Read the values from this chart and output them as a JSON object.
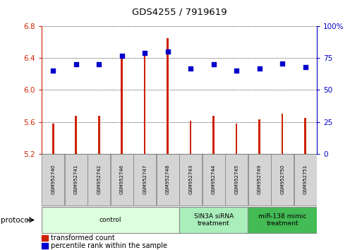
{
  "title": "GDS4255 / 7919619",
  "samples": [
    "GSM952740",
    "GSM952741",
    "GSM952742",
    "GSM952746",
    "GSM952747",
    "GSM952748",
    "GSM952743",
    "GSM952744",
    "GSM952745",
    "GSM952749",
    "GSM952750",
    "GSM952751"
  ],
  "bar_values": [
    5.58,
    5.68,
    5.68,
    6.4,
    6.43,
    6.65,
    5.61,
    5.68,
    5.58,
    5.63,
    5.7,
    5.65
  ],
  "percentile_values": [
    65,
    70,
    70,
    77,
    79,
    80,
    67,
    70,
    65,
    67,
    71,
    68
  ],
  "bar_bottom": 5.2,
  "ylim_left": [
    5.2,
    6.8
  ],
  "ylim_right": [
    0,
    100
  ],
  "yticks_left": [
    5.2,
    5.6,
    6.0,
    6.4,
    6.8
  ],
  "yticks_right": [
    0,
    25,
    50,
    75,
    100
  ],
  "ytick_labels_right": [
    "0",
    "25",
    "50",
    "75",
    "100%"
  ],
  "bar_color": "#cc2200",
  "scatter_color": "#0000cc",
  "groups": [
    {
      "label": "control",
      "start": 0,
      "end": 6,
      "color": "#ddffdd"
    },
    {
      "label": "SIN3A siRNA\ntreatment",
      "start": 6,
      "end": 9,
      "color": "#aaeebb"
    },
    {
      "label": "miR-138 mimic\ntreatment",
      "start": 9,
      "end": 12,
      "color": "#44bb55"
    }
  ],
  "legend_bar_label": "transformed count",
  "legend_scatter_label": "percentile rank within the sample",
  "protocol_label": "protocol",
  "bar_width": 0.08,
  "grid_color": "#000000",
  "background_color": "#ffffff",
  "tick_label_color_left": "#cc2200",
  "tick_label_color_right": "#0000cc"
}
